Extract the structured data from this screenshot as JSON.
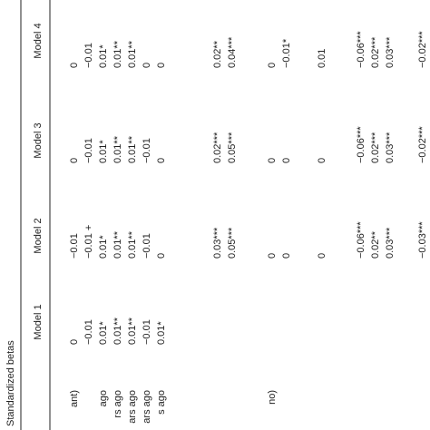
{
  "header": {
    "title": "Standardized betas"
  },
  "table": {
    "columns": [
      "Model 1",
      "Model 2",
      "Model 3",
      "Model 4"
    ],
    "rows": [
      {
        "label": "ant)",
        "values": [
          "0",
          "−0.01",
          "0",
          "0"
        ]
      },
      {
        "label": null,
        "values": [
          "−0.01",
          "−0.01 +",
          "−0.01",
          "−0.01"
        ]
      },
      {
        "label": "ago",
        "values": [
          "0.01*",
          "0.01*",
          "0.01*",
          "0.01*"
        ]
      },
      {
        "label": "rs ago",
        "values": [
          "0.01**",
          "0.01**",
          "0.01**",
          "0.01**"
        ]
      },
      {
        "label": "ars ago",
        "values": [
          "0.01**",
          "0.01**",
          "0.01**",
          "0.01**"
        ]
      },
      {
        "label": "ars ago",
        "values": [
          "−0.01",
          "−0.01",
          "−0.01",
          "0"
        ]
      },
      {
        "label": "s ago",
        "values": [
          "0.01*",
          "0",
          "0",
          "0"
        ]
      },
      {
        "label": null,
        "values": [
          null,
          "0.03***",
          "0.02***",
          "0.02**"
        ]
      },
      {
        "label": null,
        "values": [
          null,
          "0.05***",
          "0.05***",
          "0.04***"
        ]
      },
      {
        "label": "no)",
        "values": [
          null,
          "0",
          "0",
          "0"
        ]
      },
      {
        "label": null,
        "values": [
          null,
          "0",
          "0",
          "−0.01*"
        ]
      },
      {
        "label": null,
        "values": [
          null,
          "0",
          "0",
          "0.01"
        ]
      },
      {
        "label": null,
        "values": [
          null,
          "−0.06***",
          "−0.06***",
          "−0.06***"
        ]
      },
      {
        "label": null,
        "values": [
          null,
          "0.02**",
          "0.02***",
          "0.02***"
        ]
      },
      {
        "label": null,
        "values": [
          null,
          "0.03***",
          "0.03***",
          "0.03***"
        ]
      },
      {
        "label": null,
        "values": [
          null,
          "−0.03***",
          "−0.02***",
          "−0.02***"
        ]
      }
    ]
  }
}
